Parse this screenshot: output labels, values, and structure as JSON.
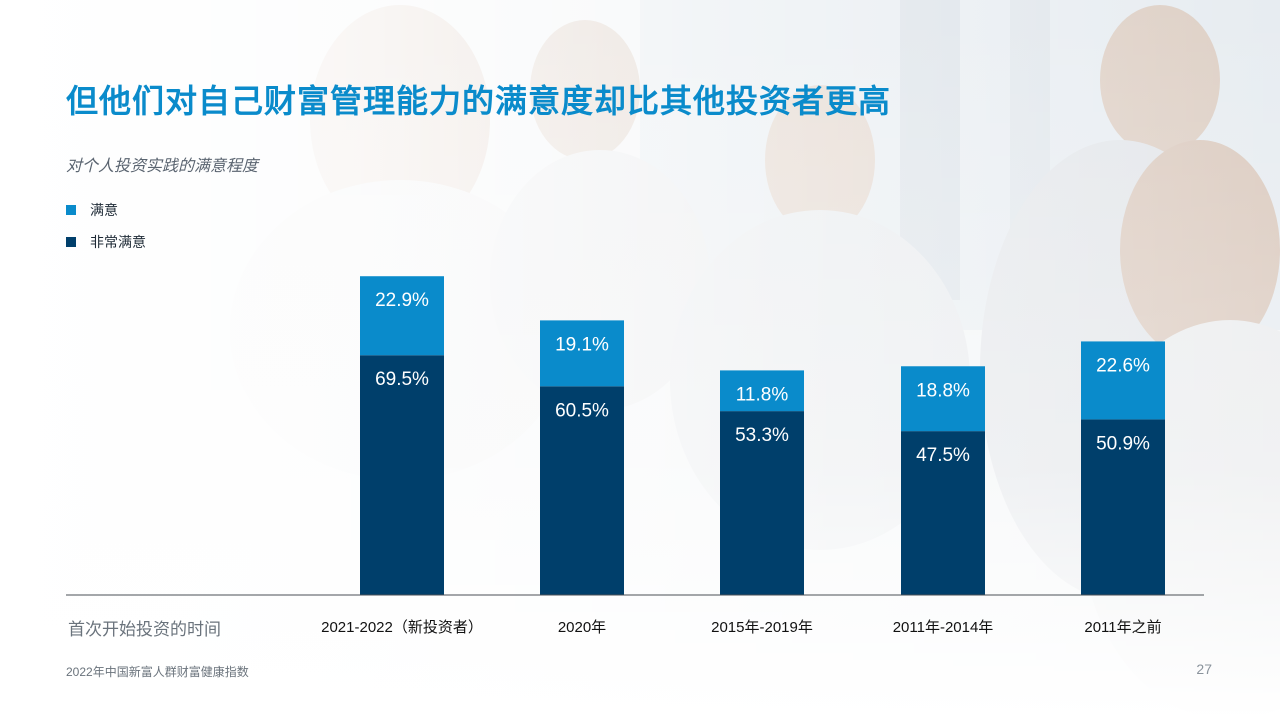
{
  "page": {
    "title": "但他们对自己财富管理能力的满意度却比其他投资者更高",
    "subtitle": "对个人投资实践的满意程度",
    "xaxis_title": "首次开始投资的时间",
    "footer": "2022年中国新富人群财富健康指数",
    "page_number": "27"
  },
  "colors": {
    "satisfied": "#0a8bcb",
    "very_satisfied": "#003f6b",
    "title": "#0a8bcb"
  },
  "legend": [
    {
      "label": "满意",
      "color": "#0a8bcb"
    },
    {
      "label": "非常满意",
      "color": "#003f6b"
    }
  ],
  "chart_data": {
    "type": "bar",
    "stacked": true,
    "categories": [
      "2021-2022（新投资者）",
      "2020年",
      "2015年-2019年",
      "2011年-2014年",
      "2011年之前"
    ],
    "series": [
      {
        "name": "非常满意",
        "values": [
          69.5,
          60.5,
          53.3,
          47.5,
          50.9
        ],
        "labels": [
          "69.5%",
          "60.5%",
          "53.3%",
          "47.5%",
          "50.9%"
        ]
      },
      {
        "name": "满意",
        "values": [
          22.9,
          19.1,
          11.8,
          18.8,
          22.6
        ],
        "labels": [
          "22.9%",
          "19.1%",
          "11.8%",
          "18.8%",
          "22.6%"
        ]
      }
    ],
    "xlabel": "首次开始投资的时间",
    "ylabel": "",
    "ylim": [
      0,
      100
    ],
    "grid": false,
    "legend_position": "top-left"
  }
}
